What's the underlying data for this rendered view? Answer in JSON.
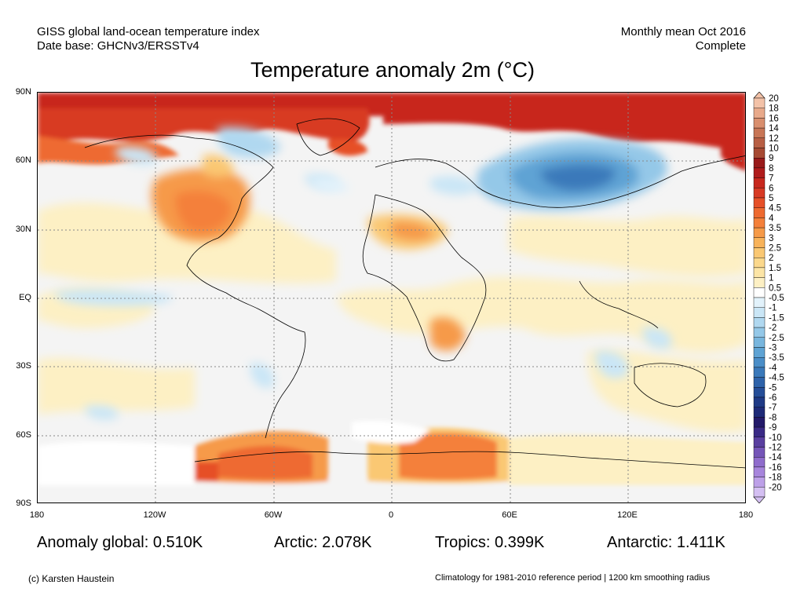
{
  "header": {
    "left_line1": "GISS global land-ocean temperature index",
    "left_line2": "Date base: GHCNv3/ERSSTv4",
    "right_line1": "Monthly mean Oct 2016",
    "right_line2": "Complete"
  },
  "title": "Temperature anomaly 2m (°C)",
  "axes": {
    "lat_ticks": [
      "90N",
      "60N",
      "30N",
      "EQ",
      "30S",
      "60S",
      "90S"
    ],
    "lon_ticks": [
      "180",
      "120W",
      "60W",
      "0",
      "60E",
      "120E",
      "180"
    ]
  },
  "stats": {
    "global": "Anomaly global: 0.510K",
    "arctic": "Arctic: 2.078K",
    "tropics": "Tropics: 0.399K",
    "antarctic": "Antarctic: 1.411K"
  },
  "footer": {
    "credit": "(c) Karsten Haustein",
    "note": "Climatology for 1981-2010 reference period | 1200 km smoothing radius"
  },
  "colorbar": {
    "labels": [
      "20",
      "18",
      "16",
      "14",
      "12",
      "10",
      "9",
      "8",
      "7",
      "6",
      "5",
      "4.5",
      "4",
      "3.5",
      "3",
      "2.5",
      "2",
      "1.5",
      "1",
      "0.5",
      "-0.5",
      "-1",
      "-1.5",
      "-2",
      "-2.5",
      "-3",
      "-3.5",
      "-4",
      "-4.5",
      "-5",
      "-6",
      "-7",
      "-8",
      "-9",
      "-10",
      "-12",
      "-14",
      "-16",
      "-18",
      "-20"
    ],
    "colors": [
      "#f3c2a8",
      "#e8a98a",
      "#d98f6e",
      "#c87656",
      "#b85f44",
      "#a74a33",
      "#991a1a",
      "#b01c1c",
      "#c8281e",
      "#d83a24",
      "#e65028",
      "#ee6a30",
      "#f4803a",
      "#f69a48",
      "#f8b35a",
      "#fac873",
      "#fbd88c",
      "#fce5a6",
      "#fdf0c4",
      "#ffffff",
      "#e2f2fb",
      "#cae6f6",
      "#b0d8f0",
      "#94c8e8",
      "#78b6de",
      "#5ea3d4",
      "#4a8ec8",
      "#3a79ba",
      "#2e63aa",
      "#254e98",
      "#1f3a86",
      "#1e2a78",
      "#231a6a",
      "#3a2a86",
      "#5a3fa0",
      "#7555b8",
      "#8f6ccc",
      "#a785dc",
      "#bda0e8",
      "#d4bff2"
    ]
  }
}
